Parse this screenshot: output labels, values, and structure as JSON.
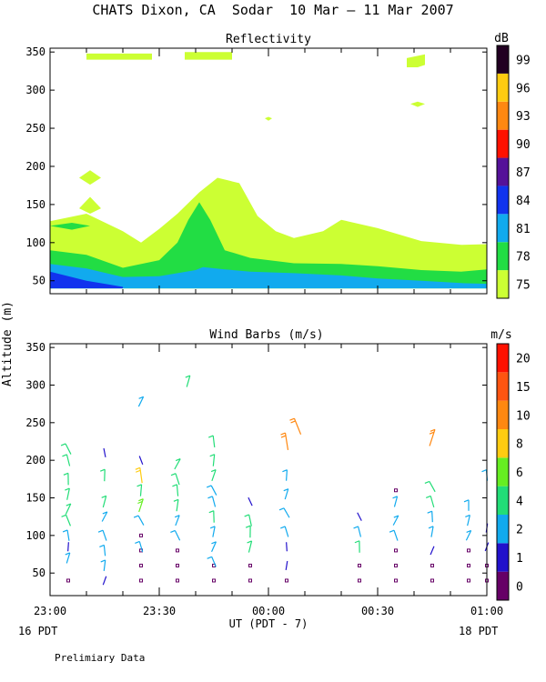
{
  "title": "CHATS Dixon, CA  Sodar  10 Mar – 11 Mar 2007",
  "ylabel": "Altitude (m)",
  "xlabel": "UT (PDT - 7)",
  "start_label": "16 PDT",
  "end_label": "18 PDT",
  "footer": "Prelimiary Data",
  "chart_data": [
    {
      "type": "heatmap",
      "title": "Reflectivity",
      "colorbar_label": "dB",
      "colorbar_ticks": [
        "75",
        "78",
        "81",
        "84",
        "87",
        "90",
        "93",
        "96",
        "99"
      ],
      "colorbar_colors": [
        "#ccff33",
        "#22dd44",
        "#11aaee",
        "#1133ee",
        "#551199",
        "#ff1100",
        "#ff8811",
        "#ffcc11",
        "#220022"
      ],
      "x_categories": [
        "23:00",
        "23:30",
        "00:00",
        "00:30",
        "01:00"
      ],
      "y_ticks": [
        50,
        100,
        150,
        200,
        250,
        300,
        350
      ],
      "ylim": [
        33,
        355
      ],
      "xlim": [
        0,
        120
      ],
      "layers": [
        {
          "level": 75,
          "polygon": [
            [
              0,
              128
            ],
            [
              10,
              138
            ],
            [
              20,
              115
            ],
            [
              25,
              100
            ],
            [
              30,
              118
            ],
            [
              35,
              138
            ],
            [
              41,
              166
            ],
            [
              46,
              185
            ],
            [
              52,
              178
            ],
            [
              57,
              135
            ],
            [
              62,
              115
            ],
            [
              67,
              106
            ],
            [
              75,
              115
            ],
            [
              80,
              130
            ],
            [
              90,
              119
            ],
            [
              102,
              102
            ],
            [
              113,
              97
            ],
            [
              120,
              98
            ],
            [
              120,
              40
            ],
            [
              0,
              40
            ]
          ]
        },
        {
          "level": 75,
          "polygon": [
            [
              8,
              185
            ],
            [
              11,
              195
            ],
            [
              14,
              185
            ],
            [
              11,
              176
            ]
          ]
        },
        {
          "level": 75,
          "polygon": [
            [
              8,
              145
            ],
            [
              11,
              160
            ],
            [
              14,
              145
            ],
            [
              11,
              138
            ]
          ]
        },
        {
          "level": 75,
          "polygon": [
            [
              10,
              340
            ],
            [
              28,
              340
            ],
            [
              28,
              348
            ],
            [
              10,
              348
            ]
          ]
        },
        {
          "level": 75,
          "polygon": [
            [
              37,
              340
            ],
            [
              50,
              340
            ],
            [
              50,
              350
            ],
            [
              37,
              350
            ]
          ]
        },
        {
          "level": 75,
          "polygon": [
            [
              98,
              342
            ],
            [
              103,
              347
            ],
            [
              103,
              333
            ],
            [
              101,
              330
            ],
            [
              98,
              330
            ]
          ]
        },
        {
          "level": 75,
          "polygon": [
            [
              99,
              282
            ],
            [
              101,
              278
            ],
            [
              103,
              282
            ],
            [
              101,
              285
            ]
          ]
        },
        {
          "level": 75,
          "polygon": [
            [
              59,
              263
            ],
            [
              60,
              260
            ],
            [
              61,
              263
            ],
            [
              60,
              265
            ]
          ]
        },
        {
          "level": 78,
          "polygon": [
            [
              0,
              90
            ],
            [
              10,
              84
            ],
            [
              20,
              67
            ],
            [
              30,
              77
            ],
            [
              35,
              100
            ],
            [
              38,
              130
            ],
            [
              41,
              153
            ],
            [
              44,
              130
            ],
            [
              48,
              90
            ],
            [
              55,
              80
            ],
            [
              67,
              73
            ],
            [
              80,
              72
            ],
            [
              90,
              69
            ],
            [
              102,
              64
            ],
            [
              113,
              62
            ],
            [
              120,
              65
            ],
            [
              120,
              40
            ],
            [
              0,
              40
            ]
          ]
        },
        {
          "level": 78,
          "polygon": [
            [
              0,
              122
            ],
            [
              6,
              126
            ],
            [
              11,
              122
            ],
            [
              6,
              117
            ]
          ]
        },
        {
          "level": 81,
          "polygon": [
            [
              0,
              72
            ],
            [
              10,
              66
            ],
            [
              20,
              55
            ],
            [
              30,
              56
            ],
            [
              40,
              64
            ],
            [
              42,
              68
            ],
            [
              48,
              65
            ],
            [
              55,
              62
            ],
            [
              67,
              60
            ],
            [
              80,
              57
            ],
            [
              90,
              53
            ],
            [
              102,
              50
            ],
            [
              113,
              47
            ],
            [
              120,
              46
            ],
            [
              120,
              40
            ],
            [
              0,
              40
            ]
          ]
        },
        {
          "level": 84,
          "polygon": [
            [
              0,
              62
            ],
            [
              10,
              50
            ],
            [
              20,
              42
            ],
            [
              20,
              40
            ],
            [
              0,
              40
            ]
          ]
        }
      ]
    },
    {
      "type": "scatter",
      "title": "Wind Barbs (m/s)",
      "colorbar_label": "m/s",
      "colorbar_ticks": [
        "0",
        "1",
        "2",
        "4",
        "6",
        "8",
        "10",
        "15",
        "20"
      ],
      "colorbar_colors": [
        "#660066",
        "#2211cc",
        "#11aaee",
        "#22dd77",
        "#66ee22",
        "#ffcc11",
        "#ff8811",
        "#ff5511",
        "#ff1100"
      ],
      "x_categories": [
        "23:00",
        "23:30",
        "00:00",
        "00:30",
        "01:00"
      ],
      "y_ticks": [
        50,
        100,
        150,
        200,
        250,
        300,
        350
      ],
      "ylim": [
        20,
        355
      ],
      "xlim": [
        0,
        120
      ],
      "barbs": [
        {
          "x": 5,
          "y": 40,
          "speed": 0
        },
        {
          "x": 5,
          "y": 70,
          "speed": 3
        },
        {
          "x": 5,
          "y": 85,
          "speed": 1
        },
        {
          "x": 5,
          "y": 100,
          "speed": 3
        },
        {
          "x": 5,
          "y": 120,
          "speed": 4
        },
        {
          "x": 5,
          "y": 135,
          "speed": 4
        },
        {
          "x": 5,
          "y": 155,
          "speed": 4
        },
        {
          "x": 5,
          "y": 175,
          "speed": 4
        },
        {
          "x": 5,
          "y": 200,
          "speed": 4
        },
        {
          "x": 5,
          "y": 215,
          "speed": 4
        },
        {
          "x": 15,
          "y": 40,
          "speed": 1
        },
        {
          "x": 15,
          "y": 60,
          "speed": 3
        },
        {
          "x": 15,
          "y": 80,
          "speed": 3
        },
        {
          "x": 15,
          "y": 100,
          "speed": 3
        },
        {
          "x": 15,
          "y": 125,
          "speed": 3
        },
        {
          "x": 15,
          "y": 145,
          "speed": 4
        },
        {
          "x": 15,
          "y": 180,
          "speed": 4
        },
        {
          "x": 15,
          "y": 210,
          "speed": 1
        },
        {
          "x": 25,
          "y": 40,
          "speed": 0
        },
        {
          "x": 25,
          "y": 60,
          "speed": 0
        },
        {
          "x": 25,
          "y": 80,
          "speed": 0
        },
        {
          "x": 25,
          "y": 100,
          "speed": 0
        },
        {
          "x": 25,
          "y": 85,
          "speed": 3
        },
        {
          "x": 25,
          "y": 120,
          "speed": 3
        },
        {
          "x": 25,
          "y": 140,
          "speed": 6
        },
        {
          "x": 25,
          "y": 160,
          "speed": 4
        },
        {
          "x": 25,
          "y": 180,
          "speed": 8
        },
        {
          "x": 25,
          "y": 200,
          "speed": 1
        },
        {
          "x": 25,
          "y": 278,
          "speed": 3
        },
        {
          "x": 35,
          "y": 40,
          "speed": 0
        },
        {
          "x": 35,
          "y": 60,
          "speed": 0
        },
        {
          "x": 35,
          "y": 80,
          "speed": 0
        },
        {
          "x": 35,
          "y": 100,
          "speed": 3
        },
        {
          "x": 35,
          "y": 120,
          "speed": 3
        },
        {
          "x": 35,
          "y": 140,
          "speed": 4
        },
        {
          "x": 35,
          "y": 160,
          "speed": 4
        },
        {
          "x": 35,
          "y": 175,
          "speed": 4
        },
        {
          "x": 35,
          "y": 195,
          "speed": 4
        },
        {
          "x": 38,
          "y": 305,
          "speed": 4
        },
        {
          "x": 45,
          "y": 40,
          "speed": 0
        },
        {
          "x": 45,
          "y": 60,
          "speed": 0
        },
        {
          "x": 45,
          "y": 65,
          "speed": 3
        },
        {
          "x": 45,
          "y": 85,
          "speed": 3
        },
        {
          "x": 45,
          "y": 105,
          "speed": 3
        },
        {
          "x": 45,
          "y": 125,
          "speed": 4
        },
        {
          "x": 45,
          "y": 145,
          "speed": 3
        },
        {
          "x": 45,
          "y": 160,
          "speed": 3
        },
        {
          "x": 45,
          "y": 180,
          "speed": 4
        },
        {
          "x": 45,
          "y": 200,
          "speed": 4
        },
        {
          "x": 45,
          "y": 225,
          "speed": 4
        },
        {
          "x": 55,
          "y": 40,
          "speed": 0
        },
        {
          "x": 55,
          "y": 60,
          "speed": 0
        },
        {
          "x": 55,
          "y": 85,
          "speed": 4
        },
        {
          "x": 55,
          "y": 105,
          "speed": 4
        },
        {
          "x": 55,
          "y": 120,
          "speed": 4
        },
        {
          "x": 55,
          "y": 145,
          "speed": 1
        },
        {
          "x": 65,
          "y": 40,
          "speed": 0
        },
        {
          "x": 65,
          "y": 60,
          "speed": 1
        },
        {
          "x": 65,
          "y": 85,
          "speed": 1
        },
        {
          "x": 65,
          "y": 105,
          "speed": 3
        },
        {
          "x": 65,
          "y": 130,
          "speed": 3
        },
        {
          "x": 65,
          "y": 155,
          "speed": 3
        },
        {
          "x": 65,
          "y": 180,
          "speed": 3
        },
        {
          "x": 65,
          "y": 225,
          "speed": 10
        },
        {
          "x": 68,
          "y": 245,
          "speed": 10
        },
        {
          "x": 85,
          "y": 40,
          "speed": 0
        },
        {
          "x": 85,
          "y": 60,
          "speed": 0
        },
        {
          "x": 85,
          "y": 85,
          "speed": 4
        },
        {
          "x": 85,
          "y": 105,
          "speed": 3
        },
        {
          "x": 85,
          "y": 125,
          "speed": 1
        },
        {
          "x": 95,
          "y": 40,
          "speed": 0
        },
        {
          "x": 95,
          "y": 60,
          "speed": 0
        },
        {
          "x": 95,
          "y": 80,
          "speed": 0
        },
        {
          "x": 95,
          "y": 100,
          "speed": 3
        },
        {
          "x": 95,
          "y": 120,
          "speed": 3
        },
        {
          "x": 95,
          "y": 145,
          "speed": 3
        },
        {
          "x": 95,
          "y": 160,
          "speed": 0
        },
        {
          "x": 105,
          "y": 40,
          "speed": 0
        },
        {
          "x": 105,
          "y": 60,
          "speed": 0
        },
        {
          "x": 105,
          "y": 80,
          "speed": 1
        },
        {
          "x": 105,
          "y": 105,
          "speed": 3
        },
        {
          "x": 105,
          "y": 125,
          "speed": 3
        },
        {
          "x": 105,
          "y": 145,
          "speed": 4
        },
        {
          "x": 105,
          "y": 165,
          "speed": 4
        },
        {
          "x": 105,
          "y": 230,
          "speed": 10
        },
        {
          "x": 115,
          "y": 40,
          "speed": 0
        },
        {
          "x": 115,
          "y": 60,
          "speed": 0
        },
        {
          "x": 115,
          "y": 80,
          "speed": 0
        },
        {
          "x": 115,
          "y": 100,
          "speed": 3
        },
        {
          "x": 115,
          "y": 120,
          "speed": 3
        },
        {
          "x": 115,
          "y": 140,
          "speed": 3
        },
        {
          "x": 120,
          "y": 40,
          "speed": 0
        },
        {
          "x": 120,
          "y": 60,
          "speed": 0
        },
        {
          "x": 120,
          "y": 85,
          "speed": 1
        },
        {
          "x": 120,
          "y": 110,
          "speed": 1
        },
        {
          "x": 120,
          "y": 180,
          "speed": 3
        }
      ]
    }
  ]
}
